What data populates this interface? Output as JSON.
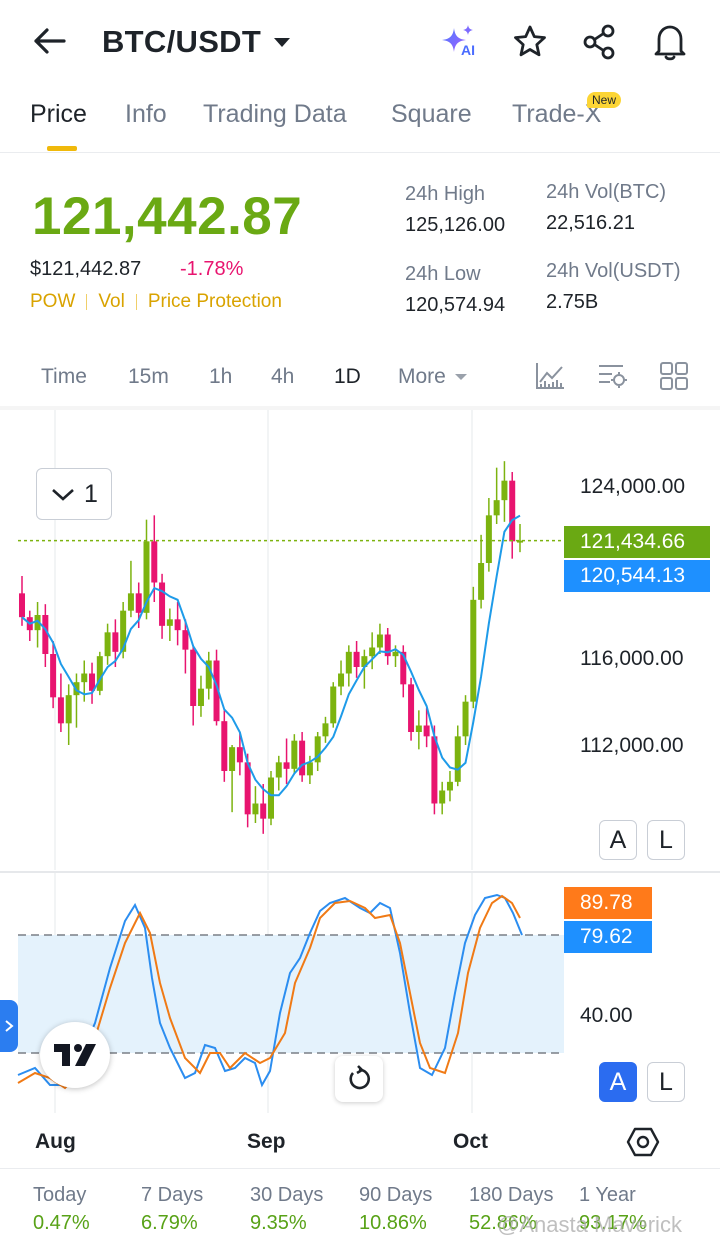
{
  "header": {
    "pair": "BTC/USDT",
    "ai_badge": "AI"
  },
  "tabs": [
    {
      "label": "Price"
    },
    {
      "label": "Info"
    },
    {
      "label": "Trading Data"
    },
    {
      "label": "Square"
    },
    {
      "label": "Trade-X"
    }
  ],
  "new_badge": "New",
  "ticker": {
    "last_price": "121,442.87",
    "usd_price": "$121,442.87",
    "change": "-1.78%",
    "tags": [
      "POW",
      "Vol",
      "Price Protection"
    ],
    "high_label": "24h High",
    "high": "125,126.00",
    "low_label": "24h Low",
    "low": "120,574.94",
    "vol_btc_label": "24h Vol(BTC)",
    "vol_btc": "22,516.21",
    "vol_usdt_label": "24h Vol(USDT)",
    "vol_usdt": "2.75B"
  },
  "timeframes": [
    "Time",
    "15m",
    "1h",
    "4h",
    "1D",
    "More"
  ],
  "chart": {
    "dropdown_value": "1",
    "price_axis": [
      "124,000.00",
      "116,000.00",
      "112,000.00"
    ],
    "last_price_tag": "121,434.66",
    "ma_tag": "120,544.13",
    "kdj_tag_1": "89.78",
    "kdj_tag_2": "79.62",
    "kdj_axis": "40.00",
    "x_labels": [
      "Aug",
      "Sep",
      "Oct"
    ],
    "auto_btn": "A",
    "log_btn": "L"
  },
  "chart_data": {
    "type": "candlestick",
    "ylim": [
      108000,
      126000
    ],
    "candles": [
      [
        119000,
        119800,
        117500,
        117900
      ],
      [
        117900,
        118200,
        116800,
        117300
      ],
      [
        117300,
        118600,
        116500,
        118000
      ],
      [
        118000,
        118500,
        115600,
        116200
      ],
      [
        116200,
        116800,
        113700,
        114200
      ],
      [
        114200,
        115300,
        112600,
        113000
      ],
      [
        113000,
        114800,
        112000,
        114300
      ],
      [
        114300,
        115300,
        112800,
        114900
      ],
      [
        114900,
        115900,
        114000,
        115300
      ],
      [
        115300,
        115800,
        113900,
        114500
      ],
      [
        114500,
        116300,
        114300,
        116100
      ],
      [
        116100,
        117600,
        115700,
        117200
      ],
      [
        117200,
        117800,
        115600,
        116300
      ],
      [
        116300,
        118600,
        116000,
        118200
      ],
      [
        118200,
        120500,
        117900,
        119000
      ],
      [
        119000,
        119500,
        117400,
        118100
      ],
      [
        118100,
        122400,
        117800,
        121400
      ],
      [
        121400,
        122600,
        118600,
        119500
      ],
      [
        119500,
        119900,
        116900,
        117500
      ],
      [
        117500,
        118300,
        116800,
        117800
      ],
      [
        117800,
        118600,
        116600,
        117300
      ],
      [
        117300,
        117800,
        115300,
        116400
      ],
      [
        116400,
        116600,
        112900,
        113800
      ],
      [
        113800,
        115200,
        113300,
        114600
      ],
      [
        114600,
        116300,
        114100,
        115900
      ],
      [
        115900,
        116400,
        112900,
        113100
      ],
      [
        113100,
        113600,
        110300,
        110800
      ],
      [
        110800,
        112000,
        108900,
        111900
      ],
      [
        111900,
        112600,
        110600,
        111200
      ],
      [
        111200,
        111600,
        108200,
        108800
      ],
      [
        108800,
        110100,
        108400,
        109300
      ],
      [
        109300,
        110200,
        107900,
        108600
      ],
      [
        108600,
        110800,
        108300,
        110500
      ],
      [
        110500,
        111500,
        109900,
        111200
      ],
      [
        111200,
        112300,
        110200,
        110900
      ],
      [
        110900,
        112500,
        110700,
        112200
      ],
      [
        112200,
        112600,
        110300,
        110600
      ],
      [
        110600,
        111500,
        110200,
        111200
      ],
      [
        111200,
        112600,
        110800,
        112400
      ],
      [
        112400,
        113300,
        112100,
        113000
      ],
      [
        113000,
        114900,
        112800,
        114700
      ],
      [
        114700,
        115900,
        114300,
        115300
      ],
      [
        115300,
        116600,
        114700,
        116300
      ],
      [
        116300,
        116800,
        115100,
        115600
      ],
      [
        115600,
        116400,
        114600,
        116100
      ],
      [
        116100,
        117200,
        115500,
        116500
      ],
      [
        116500,
        117600,
        116200,
        117100
      ],
      [
        117100,
        117400,
        115700,
        116100
      ],
      [
        116100,
        116600,
        115600,
        116300
      ],
      [
        116300,
        116600,
        114200,
        114800
      ],
      [
        114800,
        115100,
        112200,
        112600
      ],
      [
        112600,
        113600,
        111800,
        112900
      ],
      [
        112900,
        113700,
        111900,
        112400
      ],
      [
        112400,
        112900,
        108800,
        109300
      ],
      [
        109300,
        110300,
        108800,
        109900
      ],
      [
        109900,
        110800,
        109400,
        110300
      ],
      [
        110300,
        112900,
        110100,
        112400
      ],
      [
        112400,
        114300,
        112000,
        114000
      ],
      [
        114000,
        119300,
        113700,
        118700
      ],
      [
        118700,
        121700,
        118300,
        120400
      ],
      [
        120400,
        123400,
        120000,
        122600
      ],
      [
        122600,
        124800,
        122200,
        123300
      ],
      [
        123300,
        125100,
        122300,
        124200
      ],
      [
        124200,
        124600,
        120600,
        121400
      ],
      [
        121400,
        122200,
        120900,
        121434
      ]
    ],
    "ma_tag_value": 120544.13,
    "kdj_last": [
      89.78,
      79.62
    ]
  },
  "performance": [
    {
      "label": "Today",
      "value": "0.47%"
    },
    {
      "label": "7 Days",
      "value": "6.79%"
    },
    {
      "label": "30 Days",
      "value": "9.35%"
    },
    {
      "label": "90 Days",
      "value": "10.86%"
    },
    {
      "label": "180 Days",
      "value": "52.86%"
    },
    {
      "label": "1 Year",
      "value": "93.17%"
    }
  ],
  "watermark": "@Anasta Maverick",
  "colors": {
    "up": "#7cb30f",
    "down": "#e8146f",
    "ma": "#1e9be9",
    "k_line": "#2b8df0",
    "d_line": "#f07a15",
    "accent": "#f0b90b",
    "blue_tag": "#1e90ff",
    "orange_tag": "#ff7a1a"
  }
}
